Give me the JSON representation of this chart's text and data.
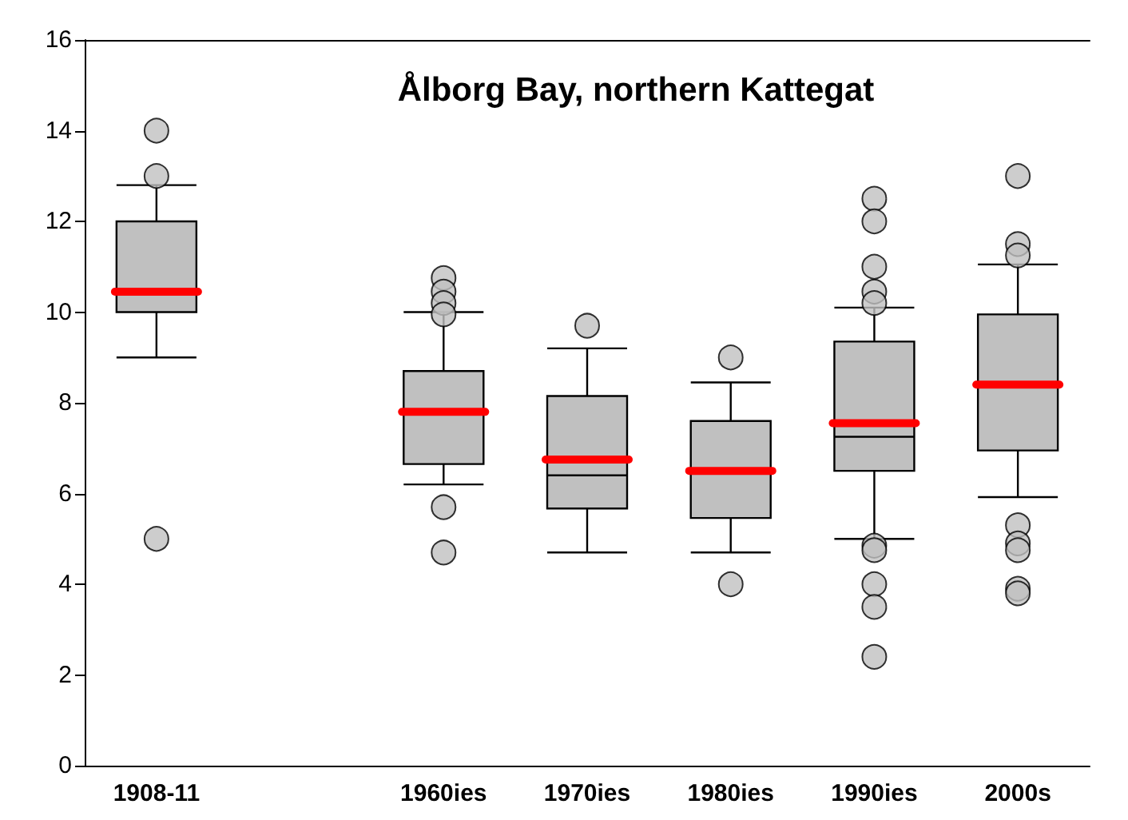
{
  "chart_data": {
    "type": "box",
    "title": "Ålborg Bay, northern Kattegat",
    "categories": [
      "1908-11",
      null,
      "1960ies",
      "1970ies",
      "1980ies",
      "1990ies",
      "2000s"
    ],
    "color": "#c0c0c0",
    "boxes": [
      {
        "low": 9,
        "q1": 10,
        "median": 10,
        "q3": 12,
        "high": 12.8,
        "mean": 10.45,
        "outliers": [
          14,
          13,
          5
        ]
      },
      null,
      {
        "low": 6.2,
        "q1": 6.65,
        "median": 7.8,
        "q3": 8.7,
        "high": 10,
        "mean": 7.8,
        "outliers": [
          10.75,
          10.45,
          10.2,
          9.95,
          5.7,
          4.7
        ]
      },
      {
        "low": 4.7,
        "q1": 5.67,
        "median": 6.4,
        "q3": 8.15,
        "high": 9.2,
        "mean": 6.75,
        "outliers": [
          9.7
        ]
      },
      {
        "low": 4.7,
        "q1": 5.46,
        "median": 6.5,
        "q3": 7.6,
        "high": 8.45,
        "mean": 6.5,
        "outliers": [
          9,
          4
        ]
      },
      {
        "low": 5,
        "q1": 6.5,
        "median": 7.25,
        "q3": 9.35,
        "high": 10.1,
        "mean": 7.55,
        "outliers": [
          12.5,
          12,
          11,
          10.45,
          10.2,
          4.85,
          4.75,
          4,
          3.5,
          2.4
        ]
      },
      {
        "low": 5.92,
        "q1": 6.95,
        "median": 8.4,
        "q3": 9.95,
        "high": 11.05,
        "mean": 8.4,
        "outliers": [
          13,
          11.5,
          11.25,
          5.3,
          4.9,
          4.75,
          3.9,
          3.8
        ]
      }
    ],
    "ylim": [
      0,
      16
    ],
    "yticks": [
      0,
      2,
      4,
      6,
      8,
      10,
      12,
      14,
      16
    ]
  }
}
